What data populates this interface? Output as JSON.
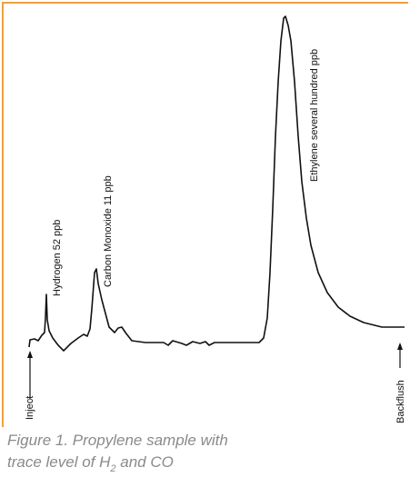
{
  "peak_labels": {
    "hydrogen": "Hydrogen 52 ppb",
    "carbon_monoxide": "Carbon Monoxide 11 ppb",
    "ethylene": "Ethylene several hundred ppb"
  },
  "markers": {
    "inject": "Inject",
    "backflush": "Backflush"
  },
  "caption": {
    "line1": "Figure 1. Propylene sample with",
    "line2_start": "trace level of H",
    "subscript": "2",
    "line2_end": " and CO"
  }
}
